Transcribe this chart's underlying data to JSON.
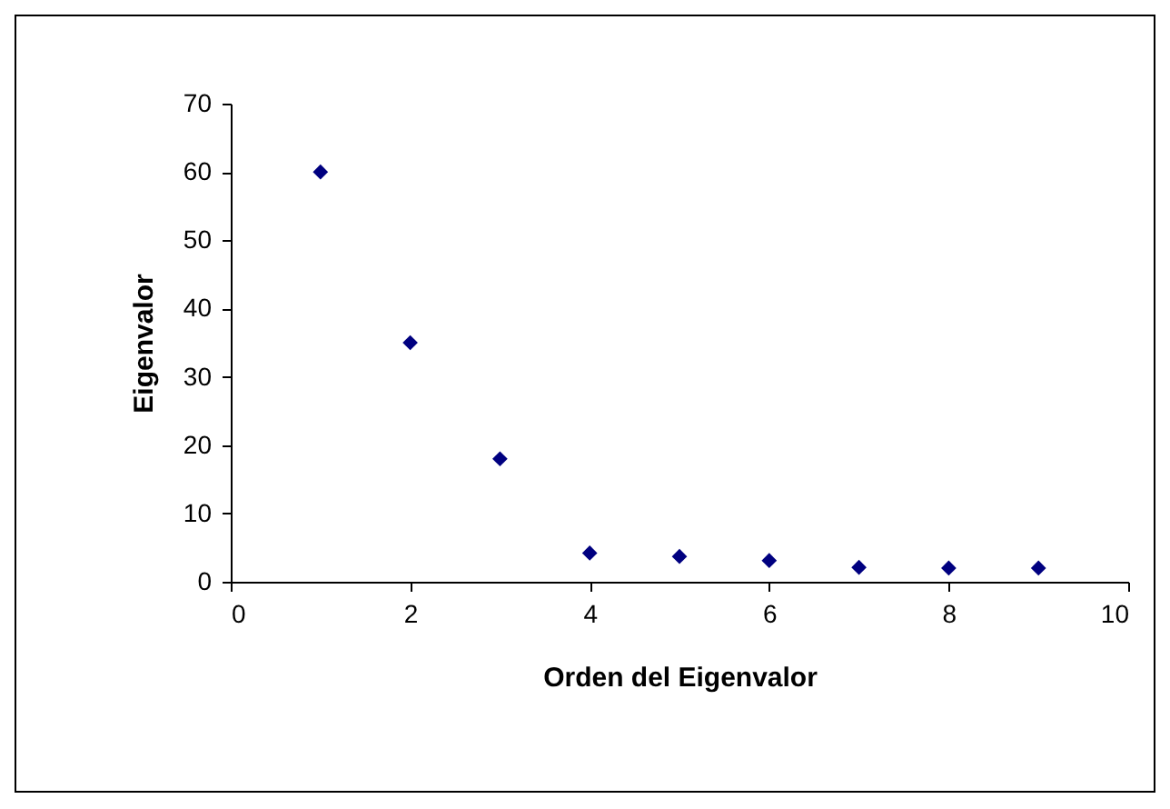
{
  "chart_data": {
    "type": "scatter",
    "xlabel": "Orden del Eigenvalor",
    "ylabel": "Eigenvalor",
    "x": [
      1,
      2,
      3,
      4,
      5,
      6,
      7,
      8,
      9
    ],
    "series": [
      {
        "color": "#000080",
        "values": [
          60,
          35,
          18,
          4.2,
          3.7,
          3.1,
          2.1,
          2,
          2
        ]
      }
    ],
    "xlim": [
      0,
      10
    ],
    "xticks": [
      0,
      2,
      4,
      6,
      8,
      10
    ],
    "ylim": [
      0,
      70
    ],
    "yticks": [
      0,
      10,
      20,
      30,
      40,
      50,
      60,
      70
    ],
    "grid": false,
    "legend": false,
    "marker": "diamond"
  }
}
